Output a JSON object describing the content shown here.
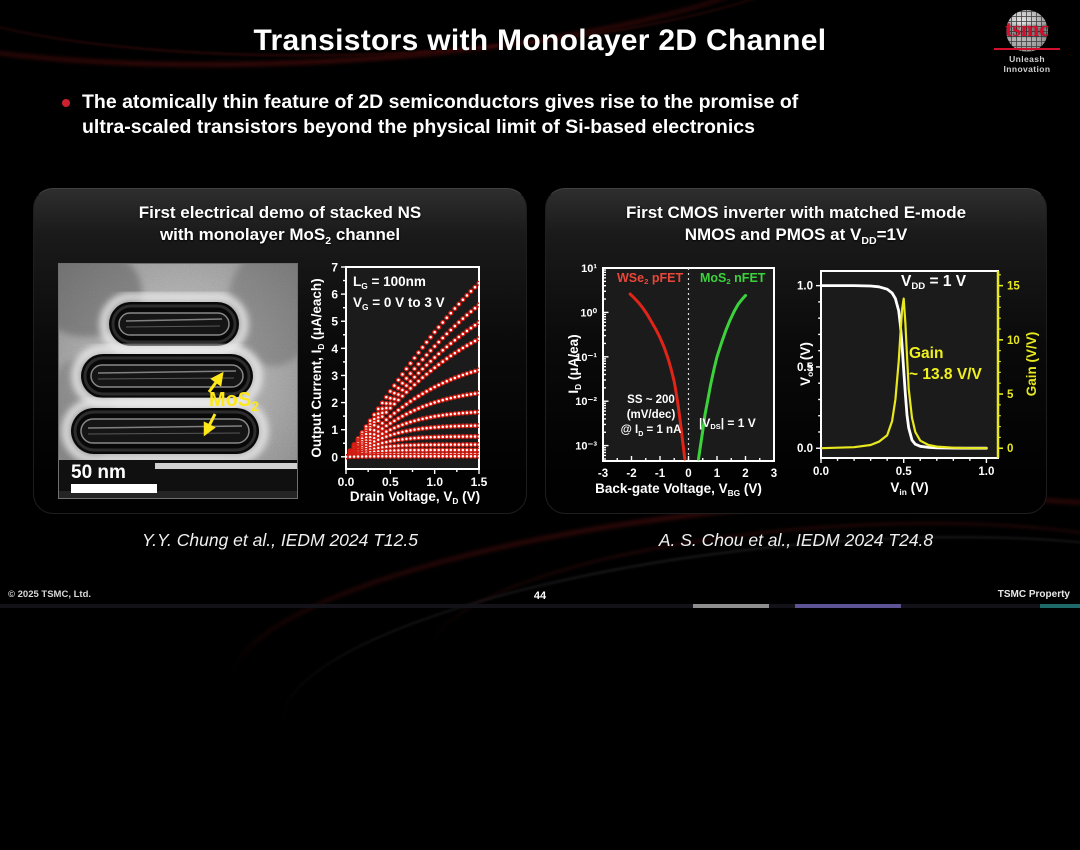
{
  "slide": {
    "title": "Transistors with Monolayer 2D Channel",
    "bullet_line1": "The atomically thin feature of 2D semiconductors gives rise to the promise of",
    "bullet_line2": "ultra-scaled transistors beyond the physical limit of Si-based electronics",
    "page_number": "44",
    "footer_left": "© 2025 TSMC, Ltd.",
    "footer_right": "TSMC Property",
    "logo": {
      "brand": "tsmc",
      "tagline": "Unleash Innovation",
      "brand_color": "#d40f2c"
    },
    "accent_red": "#cf2030"
  },
  "left_panel": {
    "header1": "First electrical demo of stacked NS",
    "header2": {
      "pre": "with monolayer MoS",
      "sub": "2",
      "post": " channel"
    },
    "citation": "Y.Y. Chung et al., IEDM 2024 T12.5",
    "tem": {
      "label": {
        "pre": "MoS",
        "sub": "2"
      },
      "label_color": "#ffe81a",
      "scale": "50 nm"
    }
  },
  "right_panel": {
    "header1": "First CMOS inverter with matched E-mode",
    "header2": {
      "pre": "NMOS and PMOS at V",
      "sub": "DD",
      "post": "=1V"
    },
    "citation": "A. S. Chou et al., IEDM 2024 T24.8"
  },
  "chart_data": [
    {
      "id": "output-characteristics",
      "type": "line",
      "xlabel": "Drain Voltage, V_D (V)",
      "ylabel": "Output Current, I_D (μA/each)",
      "xlim": [
        0,
        1.5
      ],
      "ylim": [
        -0.45,
        7
      ],
      "xticks": [
        0,
        0.5,
        1,
        1.5
      ],
      "xtick_labels": [
        "0.0",
        "0.5",
        "1.0",
        "1.5"
      ],
      "yticks": [
        0,
        1,
        2,
        3,
        4,
        5,
        6,
        7
      ],
      "ytick_labels": [
        "0",
        "1",
        "2",
        "3",
        "4",
        "5",
        "6",
        "7"
      ],
      "x_minor_step": 0.25,
      "y_minor_step": 0.5,
      "annotation": "L_G = 100nm, V_G = 0 V to 3 V",
      "marker_color": "#d21d12",
      "curves": [
        {
          "vg": 3.0,
          "i_at_vd_1p5": 6.4,
          "knee": 2.2
        },
        {
          "vg": 2.75,
          "i_at_vd_1p5": 5.6,
          "knee": 2.0
        },
        {
          "vg": 2.5,
          "i_at_vd_1p5": 4.95,
          "knee": 1.8
        },
        {
          "vg": 2.25,
          "i_at_vd_1p5": 4.35,
          "knee": 1.6
        },
        {
          "vg": 2.0,
          "i_at_vd_1p5": 3.2,
          "knee": 1.2
        },
        {
          "vg": 1.75,
          "i_at_vd_1p5": 2.35,
          "knee": 0.95
        },
        {
          "vg": 1.5,
          "i_at_vd_1p5": 1.65,
          "knee": 0.75
        },
        {
          "vg": 1.25,
          "i_at_vd_1p5": 1.15,
          "knee": 0.6
        },
        {
          "vg": 1.0,
          "i_at_vd_1p5": 0.75,
          "knee": 0.5
        },
        {
          "vg": 0.75,
          "i_at_vd_1p5": 0.45,
          "knee": 0.4
        },
        {
          "vg": 0.5,
          "i_at_vd_1p5": 0.25,
          "knee": 0.33
        },
        {
          "vg": 0.25,
          "i_at_vd_1p5": 0.1,
          "knee": 0.28
        },
        {
          "vg": 0.0,
          "i_at_vd_1p5": 0.02,
          "knee": 0.25
        }
      ],
      "labels": {
        "ann1": {
          "pre": "L",
          "sub": "G",
          "post": " = 100nm"
        },
        "ann2": {
          "pre": "V",
          "sub": "G",
          "post": " = 0 V to 3 V"
        },
        "ylabel": {
          "pre": "Output Current, I",
          "sub": "D",
          "post": " (μA/each)"
        },
        "xlabel": {
          "pre": "Drain Voltage, V",
          "sub": "D",
          "post": " (V)"
        }
      }
    },
    {
      "id": "transfer-curves",
      "type": "line",
      "yscale": "log",
      "xlabel": "Back-gate Voltage, V_BG (V)",
      "ylabel": "I_D (μA/ea)",
      "xlim": [
        -3,
        3
      ],
      "ylim": [
        0.00045,
        10
      ],
      "xticks": [
        -3,
        -2,
        -1,
        0,
        1,
        2,
        3
      ],
      "xtick_labels": [
        "-3",
        "-2",
        "-1",
        "0",
        "1",
        "2",
        "3"
      ],
      "x_minor_step": 0.5,
      "yticks": [
        10,
        1,
        0.1,
        0.01,
        0.001
      ],
      "ytick_labels": [
        "10¹",
        "10⁰",
        "10⁻¹",
        "10⁻²",
        "10⁻³"
      ],
      "vline_x": 0,
      "series": [
        {
          "name": "WSe₂ pFET",
          "color": "#e02418",
          "points": [
            [
              -2.05,
              2.6
            ],
            [
              -1.9,
              2.1
            ],
            [
              -1.75,
              1.65
            ],
            [
              -1.6,
              1.25
            ],
            [
              -1.45,
              0.9
            ],
            [
              -1.3,
              0.62
            ],
            [
              -1.15,
              0.42
            ],
            [
              -1.0,
              0.27
            ],
            [
              -0.85,
              0.16
            ],
            [
              -0.7,
              0.085
            ],
            [
              -0.6,
              0.05
            ],
            [
              -0.5,
              0.027
            ],
            [
              -0.42,
              0.014
            ],
            [
              -0.35,
              0.007
            ],
            [
              -0.28,
              0.0032
            ],
            [
              -0.22,
              0.0015
            ],
            [
              -0.17,
              0.0008
            ],
            [
              -0.13,
              0.0005
            ]
          ]
        },
        {
          "name": "MoS₂ nFET",
          "color": "#3bd23b",
          "points": [
            [
              0.35,
              0.0005
            ],
            [
              0.42,
              0.001
            ],
            [
              0.5,
              0.0022
            ],
            [
              0.58,
              0.005
            ],
            [
              0.68,
              0.011
            ],
            [
              0.78,
              0.024
            ],
            [
              0.9,
              0.055
            ],
            [
              1.0,
              0.1
            ],
            [
              1.15,
              0.2
            ],
            [
              1.3,
              0.38
            ],
            [
              1.45,
              0.65
            ],
            [
              1.6,
              1.05
            ],
            [
              1.75,
              1.55
            ],
            [
              1.9,
              2.05
            ],
            [
              2.0,
              2.4
            ]
          ]
        }
      ],
      "annotations": [
        "SS ~ 200 (mV/dec) @ I_D = 1 nA",
        "|V_DS| = 1 V"
      ],
      "labels": {
        "series1": {
          "pre": "WSe",
          "sub": "2",
          "post": " pFET"
        },
        "series2": {
          "pre": "MoS",
          "sub": "2",
          "post": " nFET"
        },
        "ylabel": {
          "pre": "I",
          "sub": "D",
          "post": " (μA/ea)"
        },
        "xlabel": {
          "pre": "Back-gate Voltage, V",
          "sub": "BG",
          "post": " (V)"
        },
        "ann_l1": "SS ~ 200",
        "ann_l2": "(mV/dec)",
        "ann_l3": {
          "pre": "@ I",
          "sub": "D",
          "post": " = 1 nA"
        },
        "ann_r": {
          "pre": "|V",
          "sub": "DS",
          "post": "| = 1 V"
        }
      }
    },
    {
      "id": "inverter-vtc",
      "type": "line",
      "xlabel": "V_in (V)",
      "ylabel_left": "V_out (V)",
      "ylabel_right": "Gain (V/V)",
      "xlim": [
        0,
        1.07
      ],
      "ylim_left": [
        -0.06,
        1.09
      ],
      "ylim_right": [
        -0.9,
        16.35
      ],
      "xticks": [
        0,
        0.5,
        1
      ],
      "xtick_labels": [
        "0.0",
        "0.5",
        "1.0"
      ],
      "x_minor_step": 0.1,
      "yticks_left": [
        0,
        0.5,
        1
      ],
      "ytick_labels_left": [
        "0.0",
        "0.5",
        "1.0"
      ],
      "y_minor_step_left": 0.1,
      "yticks_right": [
        0,
        5,
        10,
        15
      ],
      "ytick_labels_right": [
        "0",
        "5",
        "10",
        "15"
      ],
      "y_minor_step_right": 1,
      "right_axis_color": "#e8e81e",
      "series": [
        {
          "name": "V_out",
          "axis": "left",
          "color": "#ffffff",
          "points": [
            [
              0,
              1
            ],
            [
              0.1,
              1
            ],
            [
              0.2,
              1
            ],
            [
              0.3,
              0.998
            ],
            [
              0.35,
              0.993
            ],
            [
              0.4,
              0.978
            ],
            [
              0.43,
              0.955
            ],
            [
              0.45,
              0.92
            ],
            [
              0.47,
              0.845
            ],
            [
              0.48,
              0.755
            ],
            [
              0.49,
              0.63
            ],
            [
              0.5,
              0.48
            ],
            [
              0.51,
              0.33
            ],
            [
              0.52,
              0.205
            ],
            [
              0.53,
              0.125
            ],
            [
              0.55,
              0.05
            ],
            [
              0.57,
              0.025
            ],
            [
              0.6,
              0.012
            ],
            [
              0.65,
              0.005
            ],
            [
              0.7,
              0.003
            ],
            [
              0.8,
              0.001
            ],
            [
              0.9,
              0
            ],
            [
              1.0,
              0
            ]
          ]
        },
        {
          "name": "Gain",
          "axis": "right",
          "color": "#e8e81e",
          "points": [
            [
              0,
              0
            ],
            [
              0.2,
              0.1
            ],
            [
              0.3,
              0.3
            ],
            [
              0.35,
              0.6
            ],
            [
              0.4,
              1.2
            ],
            [
              0.43,
              2.5
            ],
            [
              0.45,
              4.5
            ],
            [
              0.47,
              8
            ],
            [
              0.48,
              10.5
            ],
            [
              0.49,
              12.8
            ],
            [
              0.5,
              13.8
            ],
            [
              0.51,
              11.5
            ],
            [
              0.52,
              8.5
            ],
            [
              0.53,
              5.5
            ],
            [
              0.55,
              2.8
            ],
            [
              0.57,
              1.5
            ],
            [
              0.6,
              0.7
            ],
            [
              0.65,
              0.3
            ],
            [
              0.7,
              0.15
            ],
            [
              0.8,
              0.05
            ],
            [
              0.9,
              0
            ],
            [
              1.0,
              0
            ]
          ]
        }
      ],
      "annotations": [
        "V_DD = 1 V",
        "Gain ~ 13.8 V/V"
      ],
      "labels": {
        "ann": {
          "pre": "V",
          "sub": "DD",
          "post": " = 1 V"
        },
        "gain1": "Gain",
        "gain2": "~ 13.8 V/V",
        "ylabel_left": {
          "pre": "V",
          "sub": "out",
          "post": " (V)"
        },
        "ylabel_right": "Gain (V/V)",
        "xlabel": {
          "pre": "V",
          "sub": "in",
          "post": " (V)"
        }
      }
    }
  ]
}
